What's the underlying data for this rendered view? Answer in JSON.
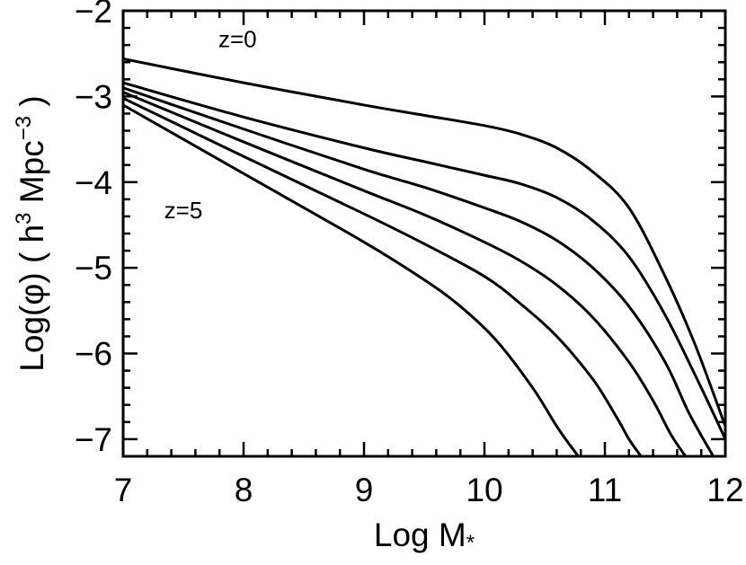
{
  "chart_data": {
    "type": "line",
    "title": "",
    "xlabel": "Log M",
    "xlabel_sub": "*",
    "ylabel": {
      "pre": "Log(",
      "phi": "φ",
      "mid": ") ( h",
      "sup1": "3",
      "mid2": " Mpc",
      "sup2": "−3",
      "post": " )"
    },
    "xlim": [
      7,
      12
    ],
    "ylim": [
      -7.2,
      -2
    ],
    "x_ticks": [
      7,
      8,
      9,
      10,
      11,
      12
    ],
    "x_tick_labels": [
      "7",
      "8",
      "9",
      "10",
      "11",
      "12"
    ],
    "y_ticks": [
      -7,
      -6,
      -5,
      -4,
      -3,
      -2
    ],
    "y_tick_labels": [
      "−7",
      "−6",
      "−5",
      "−4",
      "−3",
      "−2"
    ],
    "grid": false,
    "annotations": [
      {
        "text": "z=0",
        "x": 7.95,
        "y": -2.33
      },
      {
        "text": "z=5",
        "x": 7.5,
        "y": -4.33
      }
    ],
    "series": [
      {
        "x": [
          7,
          8,
          9,
          9.5,
          10,
          10.3,
          10.6,
          10.9,
          11.2,
          11.5,
          11.75,
          12
        ],
        "y": [
          -2.56,
          -2.84,
          -3.1,
          -3.22,
          -3.34,
          -3.44,
          -3.6,
          -3.88,
          -4.3,
          -5.1,
          -5.9,
          -6.85
        ]
      },
      {
        "x": [
          7,
          8,
          9,
          9.5,
          10,
          10.3,
          10.6,
          10.9,
          11.2,
          11.5,
          11.8,
          12
        ],
        "y": [
          -2.84,
          -3.24,
          -3.6,
          -3.76,
          -3.92,
          -4.02,
          -4.18,
          -4.45,
          -4.87,
          -5.55,
          -6.4,
          -7.0
        ]
      },
      {
        "x": [
          7,
          8,
          9,
          9.5,
          10,
          10.3,
          10.6,
          10.9,
          11.2,
          11.5,
          11.7,
          11.9
        ],
        "y": [
          -2.9,
          -3.38,
          -3.85,
          -4.06,
          -4.3,
          -4.46,
          -4.68,
          -5.0,
          -5.45,
          -6.1,
          -6.7,
          -7.2
        ]
      },
      {
        "x": [
          7,
          8,
          9,
          9.5,
          10,
          10.3,
          10.6,
          10.9,
          11.2,
          11.4,
          11.55,
          11.67
        ],
        "y": [
          -2.95,
          -3.53,
          -4.1,
          -4.38,
          -4.7,
          -4.92,
          -5.2,
          -5.58,
          -6.1,
          -6.55,
          -6.95,
          -7.2
        ]
      },
      {
        "x": [
          7,
          8,
          9,
          9.5,
          10,
          10.3,
          10.6,
          10.9,
          11.1,
          11.2,
          11.3
        ],
        "y": [
          -3.02,
          -3.7,
          -4.37,
          -4.72,
          -5.1,
          -5.42,
          -5.8,
          -6.3,
          -6.75,
          -7.0,
          -7.2
        ]
      },
      {
        "x": [
          7,
          8,
          9,
          9.5,
          9.8,
          10.1,
          10.4,
          10.6,
          10.7,
          10.78
        ],
        "y": [
          -3.1,
          -3.9,
          -4.7,
          -5.14,
          -5.45,
          -5.85,
          -6.4,
          -6.85,
          -7.05,
          -7.2
        ]
      }
    ]
  }
}
